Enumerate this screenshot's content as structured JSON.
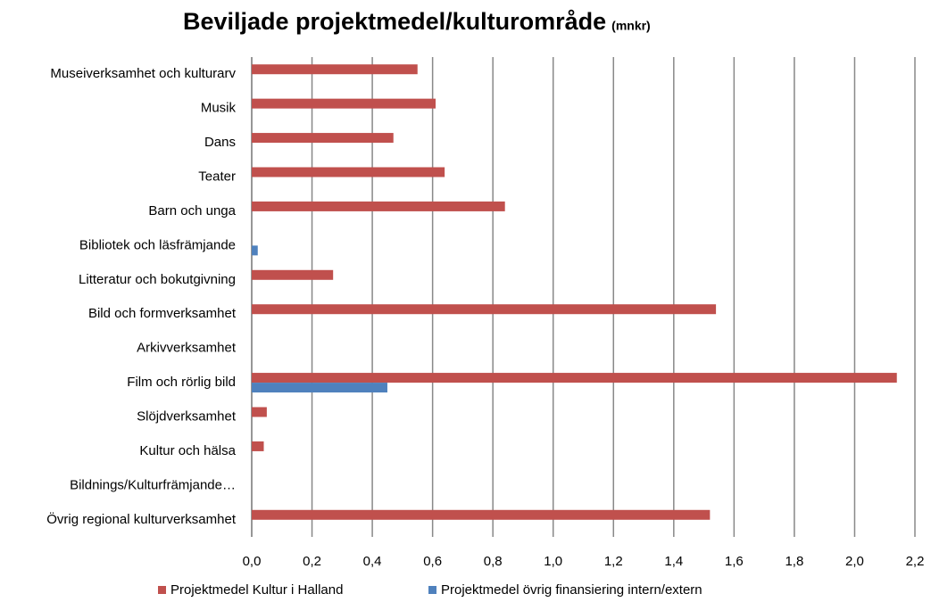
{
  "chart_data": {
    "type": "bar",
    "orientation": "horizontal",
    "title": "Beviljade projektmedel/kulturområde",
    "subtitle": "(mnkr)",
    "categories": [
      "Museiverksamhet och kulturarv",
      "Musik",
      "Dans",
      "Teater",
      "Barn och unga",
      "Bibliotek och läsfrämjande",
      "Litteratur och bokutgivning",
      "Bild och formverksamhet",
      "Arkivverksamhet",
      "Film och rörlig bild",
      "Slöjdverksamhet",
      "Kultur och hälsa",
      "Bildnings/Kulturfrämjande…",
      "Övrig regional kulturverksamhet"
    ],
    "series": [
      {
        "name": "Projektmedel Kultur i Halland",
        "color": "#c0504d",
        "values": [
          0.55,
          0.61,
          0.47,
          0.64,
          0.84,
          0,
          0.27,
          1.54,
          0,
          2.14,
          0.05,
          0.04,
          0,
          1.52
        ]
      },
      {
        "name": "Projektmedel övrig finansiering intern/extern",
        "color": "#4f81bd",
        "values": [
          0,
          0,
          0,
          0,
          0,
          0.02,
          0,
          0,
          0,
          0.45,
          0,
          0,
          0,
          0
        ]
      }
    ],
    "xlim": [
      0,
      2.2
    ],
    "xticks": [
      {
        "value": 0,
        "label": "0,0"
      },
      {
        "value": 0.2,
        "label": "0,2"
      },
      {
        "value": 0.4,
        "label": "0,4"
      },
      {
        "value": 0.6,
        "label": "0,6"
      },
      {
        "value": 0.8,
        "label": "0,8"
      },
      {
        "value": 1,
        "label": "1,0"
      },
      {
        "value": 1.2,
        "label": "1,2"
      },
      {
        "value": 1.4,
        "label": "1,4"
      },
      {
        "value": 1.6,
        "label": "1,6"
      },
      {
        "value": 1.8,
        "label": "1,8"
      },
      {
        "value": 2,
        "label": "2,0"
      },
      {
        "value": 2.2,
        "label": "2,2"
      }
    ],
    "grid": true,
    "legend": "bottom"
  }
}
